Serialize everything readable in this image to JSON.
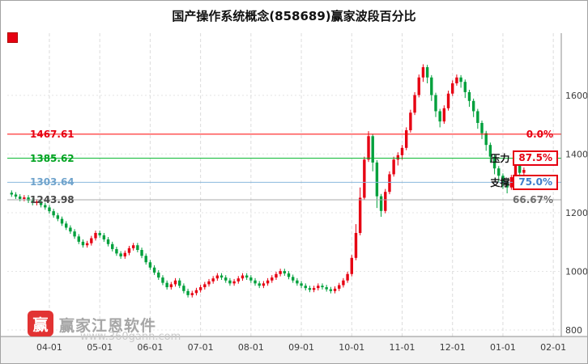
{
  "title": "国产操作系统概念(858689)赢家波段百分比",
  "legend_marker_color": "#e60012",
  "watermark": {
    "logo_char": "赢",
    "brand": "赢家江恩软件",
    "url": "www.360gann.com"
  },
  "chart_data": {
    "type": "candlestick",
    "title": "国产操作系统概念(858689)赢家波段百分比",
    "y_axis": {
      "ticks": [
        1600,
        1400,
        1200,
        1000,
        800
      ],
      "range": [
        778,
        1812
      ]
    },
    "x_axis": {
      "labels": [
        "04-01",
        "05-01",
        "06-01",
        "07-01",
        "08-01",
        "09-01",
        "10-01",
        "11-01",
        "12-01",
        "01-01",
        "02-01"
      ],
      "tick_indices": [
        9,
        21,
        33,
        45,
        57,
        69,
        81,
        93,
        105,
        117,
        129
      ]
    },
    "colors": {
      "up": "#e60012",
      "down": "#00a03c",
      "grid_v": "#dcdcdc",
      "grid_h": "#e4e4e4",
      "axis": "#8f8f8f"
    },
    "lines": [
      {
        "label": "1467.61",
        "value": 1467.61,
        "color": "#ff0000",
        "label_color": "#e60012",
        "right_text": "0.0%",
        "right_color": "#e60012",
        "style": "plain"
      },
      {
        "label": "1385.62",
        "value": 1385.62,
        "color": "#00b42a",
        "label_color": "#00a321",
        "tag": "压力",
        "right_text": "87.5%",
        "right_color": "#e60012",
        "style": "box"
      },
      {
        "label": "1303.64",
        "value": 1303.64,
        "color": "#8ab8dd",
        "label_color": "#6fa3cc",
        "tag": "支撑",
        "right_text": "75.0%",
        "right_color": "#3e7ecb",
        "style": "box"
      },
      {
        "label": "1243.98",
        "value": 1243.98,
        "color": "#aaaaaa",
        "label_color": "#4a4a4a",
        "right_text": "66.67%",
        "right_color": "#6f6f6f",
        "style": "plain"
      }
    ],
    "candles": [
      [
        1268,
        1276,
        1254,
        1262
      ],
      [
        1262,
        1270,
        1247,
        1255
      ],
      [
        1255,
        1263,
        1239,
        1247
      ],
      [
        1247,
        1260,
        1239,
        1252
      ],
      [
        1252,
        1260,
        1233,
        1241
      ],
      [
        1241,
        1249,
        1225,
        1233
      ],
      [
        1233,
        1246,
        1225,
        1238
      ],
      [
        1238,
        1246,
        1218,
        1226
      ],
      [
        1226,
        1234,
        1210,
        1218
      ],
      [
        1218,
        1226,
        1197,
        1205
      ],
      [
        1205,
        1213,
        1183,
        1191
      ],
      [
        1191,
        1199,
        1171,
        1179
      ],
      [
        1179,
        1187,
        1155,
        1163
      ],
      [
        1163,
        1171,
        1141,
        1149
      ],
      [
        1149,
        1157,
        1128,
        1136
      ],
      [
        1136,
        1144,
        1111,
        1119
      ],
      [
        1119,
        1127,
        1093,
        1101
      ],
      [
        1101,
        1109,
        1081,
        1089
      ],
      [
        1089,
        1104,
        1081,
        1096
      ],
      [
        1096,
        1121,
        1088,
        1113
      ],
      [
        1113,
        1139,
        1105,
        1131
      ],
      [
        1131,
        1139,
        1115,
        1123
      ],
      [
        1123,
        1131,
        1101,
        1109
      ],
      [
        1109,
        1117,
        1085,
        1093
      ],
      [
        1093,
        1101,
        1068,
        1076
      ],
      [
        1076,
        1084,
        1053,
        1061
      ],
      [
        1061,
        1069,
        1043,
        1051
      ],
      [
        1051,
        1071,
        1043,
        1063
      ],
      [
        1063,
        1087,
        1055,
        1079
      ],
      [
        1079,
        1097,
        1071,
        1089
      ],
      [
        1089,
        1097,
        1065,
        1073
      ],
      [
        1073,
        1081,
        1045,
        1053
      ],
      [
        1053,
        1061,
        1023,
        1031
      ],
      [
        1031,
        1039,
        1005,
        1013
      ],
      [
        1013,
        1021,
        988,
        996
      ],
      [
        996,
        1004,
        971,
        979
      ],
      [
        979,
        987,
        953,
        961
      ],
      [
        961,
        969,
        938,
        946
      ],
      [
        946,
        964,
        938,
        956
      ],
      [
        956,
        977,
        948,
        969
      ],
      [
        969,
        977,
        943,
        951
      ],
      [
        951,
        959,
        925,
        933
      ],
      [
        933,
        941,
        911,
        919
      ],
      [
        919,
        934,
        911,
        926
      ],
      [
        926,
        944,
        918,
        936
      ],
      [
        936,
        954,
        928,
        946
      ],
      [
        946,
        964,
        938,
        956
      ],
      [
        956,
        974,
        948,
        966
      ],
      [
        966,
        984,
        958,
        976
      ],
      [
        976,
        994,
        968,
        986
      ],
      [
        986,
        994,
        971,
        979
      ],
      [
        979,
        987,
        961,
        969
      ],
      [
        969,
        977,
        951,
        959
      ],
      [
        959,
        974,
        951,
        966
      ],
      [
        966,
        984,
        958,
        976
      ],
      [
        976,
        994,
        968,
        986
      ],
      [
        986,
        994,
        971,
        979
      ],
      [
        979,
        987,
        961,
        969
      ],
      [
        969,
        977,
        951,
        959
      ],
      [
        959,
        967,
        943,
        951
      ],
      [
        951,
        967,
        943,
        959
      ],
      [
        959,
        977,
        951,
        969
      ],
      [
        969,
        987,
        961,
        979
      ],
      [
        979,
        999,
        971,
        991
      ],
      [
        991,
        1009,
        983,
        1001
      ],
      [
        1001,
        1009,
        985,
        993
      ],
      [
        993,
        1001,
        973,
        981
      ],
      [
        981,
        989,
        961,
        969
      ],
      [
        969,
        977,
        951,
        959
      ],
      [
        959,
        967,
        943,
        951
      ],
      [
        951,
        959,
        935,
        943
      ],
      [
        943,
        951,
        929,
        937
      ],
      [
        937,
        951,
        929,
        943
      ],
      [
        943,
        959,
        935,
        951
      ],
      [
        951,
        959,
        938,
        946
      ],
      [
        946,
        954,
        931,
        939
      ],
      [
        939,
        947,
        925,
        933
      ],
      [
        933,
        949,
        925,
        941
      ],
      [
        941,
        961,
        933,
        953
      ],
      [
        953,
        977,
        945,
        969
      ],
      [
        969,
        999,
        961,
        991
      ],
      [
        991,
        1056,
        983,
        1046
      ],
      [
        1046,
        1161,
        1038,
        1131
      ],
      [
        1131,
        1286,
        1123,
        1251
      ],
      [
        1251,
        1391,
        1243,
        1381
      ],
      [
        1381,
        1478,
        1373,
        1461
      ],
      [
        1461,
        1469,
        1341,
        1371
      ],
      [
        1371,
        1379,
        1216,
        1256
      ],
      [
        1256,
        1264,
        1186,
        1206
      ],
      [
        1206,
        1281,
        1198,
        1271
      ],
      [
        1271,
        1341,
        1263,
        1331
      ],
      [
        1331,
        1391,
        1323,
        1381
      ],
      [
        1381,
        1406,
        1361,
        1396
      ],
      [
        1396,
        1431,
        1381,
        1421
      ],
      [
        1421,
        1491,
        1413,
        1481
      ],
      [
        1481,
        1551,
        1473,
        1541
      ],
      [
        1541,
        1611,
        1533,
        1601
      ],
      [
        1601,
        1671,
        1593,
        1661
      ],
      [
        1661,
        1706,
        1646,
        1696
      ],
      [
        1696,
        1704,
        1641,
        1661
      ],
      [
        1661,
        1669,
        1581,
        1601
      ],
      [
        1601,
        1609,
        1526,
        1546
      ],
      [
        1546,
        1554,
        1491,
        1511
      ],
      [
        1511,
        1566,
        1503,
        1556
      ],
      [
        1556,
        1616,
        1548,
        1606
      ],
      [
        1606,
        1651,
        1598,
        1641
      ],
      [
        1641,
        1671,
        1633,
        1661
      ],
      [
        1661,
        1669,
        1626,
        1646
      ],
      [
        1646,
        1654,
        1591,
        1611
      ],
      [
        1611,
        1619,
        1561,
        1581
      ],
      [
        1581,
        1589,
        1526,
        1546
      ],
      [
        1546,
        1554,
        1486,
        1506
      ],
      [
        1506,
        1514,
        1451,
        1471
      ],
      [
        1471,
        1479,
        1411,
        1431
      ],
      [
        1431,
        1439,
        1371,
        1391
      ],
      [
        1391,
        1399,
        1331,
        1351
      ],
      [
        1351,
        1359,
        1306,
        1326
      ],
      [
        1326,
        1334,
        1281,
        1301
      ],
      [
        1301,
        1309,
        1266,
        1286
      ],
      [
        1286,
        1329,
        1278,
        1321
      ],
      [
        1321,
        1369,
        1313,
        1361
      ],
      [
        1361,
        1369,
        1316,
        1336
      ],
      [
        1336,
        1354,
        1328,
        1346
      ]
    ]
  }
}
